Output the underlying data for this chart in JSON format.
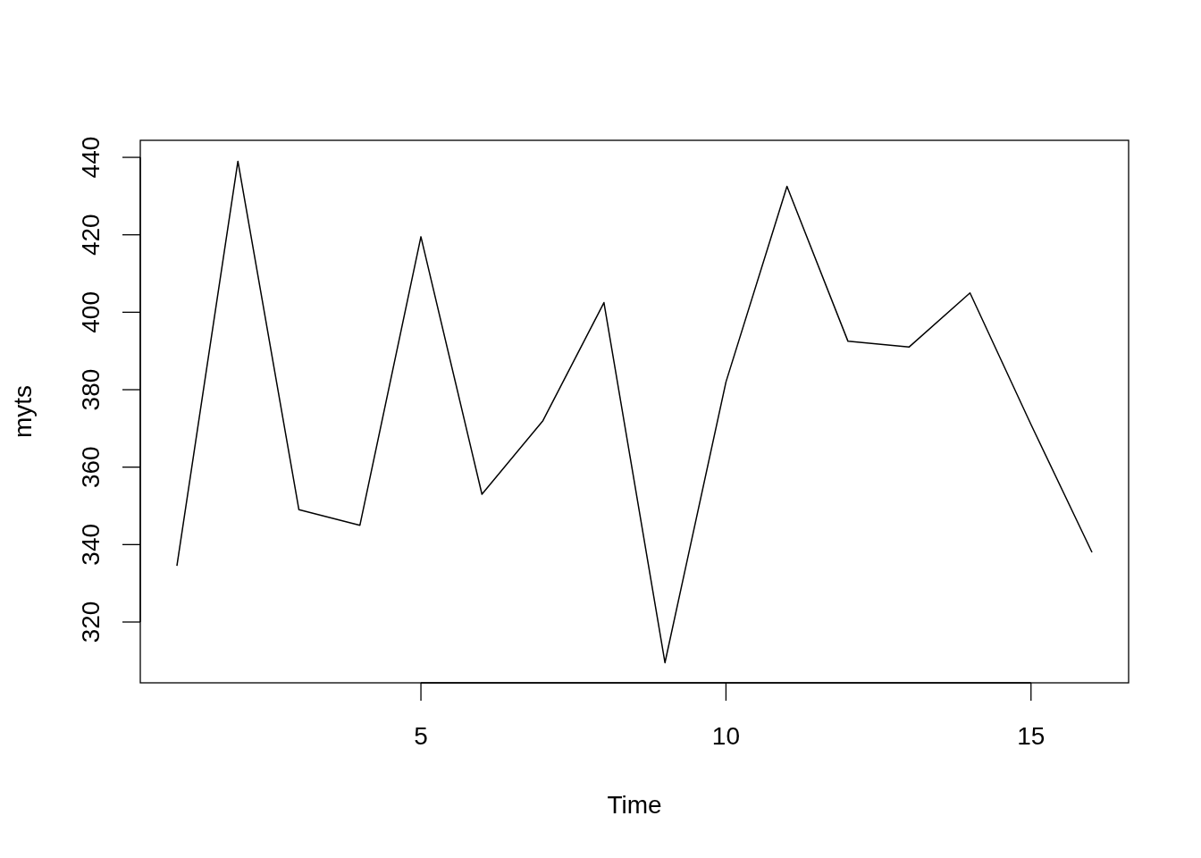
{
  "chart_data": {
    "type": "line",
    "xlabel": "Time",
    "ylabel": "myts",
    "x": [
      1,
      2,
      3,
      4,
      5,
      6,
      7,
      8,
      9,
      10,
      11,
      12,
      13,
      14,
      15,
      16
    ],
    "series": [
      {
        "color": "#000000",
        "values": [
          334.5,
          439,
          349,
          345,
          419.5,
          353,
          372,
          402.5,
          309.5,
          382,
          432.5,
          392.5,
          391,
          405,
          371,
          338
        ]
      }
    ],
    "xlim": [
      0.4,
      16.6
    ],
    "ylim": [
      304.3,
      444.4
    ],
    "xticks": [
      5,
      10,
      15
    ],
    "yticks": [
      320,
      340,
      360,
      380,
      400,
      420,
      440
    ],
    "grid": false,
    "marker": "none",
    "line_style": "solid"
  }
}
